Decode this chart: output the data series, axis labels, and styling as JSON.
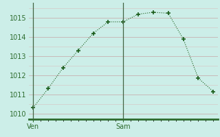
{
  "x": [
    0,
    1,
    2,
    3,
    4,
    5,
    6,
    7,
    8,
    9,
    10,
    11,
    12
  ],
  "y": [
    1010.3,
    1011.3,
    1012.4,
    1013.3,
    1014.2,
    1014.8,
    1014.8,
    1015.2,
    1015.3,
    1015.25,
    1013.9,
    1011.85,
    1011.15
  ],
  "xtick_positions": [
    0,
    6
  ],
  "xtick_labels": [
    "Ven",
    "Sam"
  ],
  "ytick_positions": [
    1010,
    1011,
    1012,
    1013,
    1014,
    1015
  ],
  "ytick_labels": [
    "1010",
    "1011",
    "1012",
    "1013",
    "1014",
    "1015"
  ],
  "ylim": [
    1009.7,
    1015.8
  ],
  "xlim": [
    -0.3,
    12.3
  ],
  "line_color": "#1a5c1a",
  "marker": "D",
  "marker_size": 2.5,
  "bg_color": "#cceee8",
  "grid_color_major": "#b8d8d0",
  "grid_color_minor": "#cce0d8",
  "axis_color": "#2d6b2d",
  "tick_label_color": "#2d6b2d",
  "vline_positions": [
    0,
    6
  ],
  "vline_color": "#446644"
}
